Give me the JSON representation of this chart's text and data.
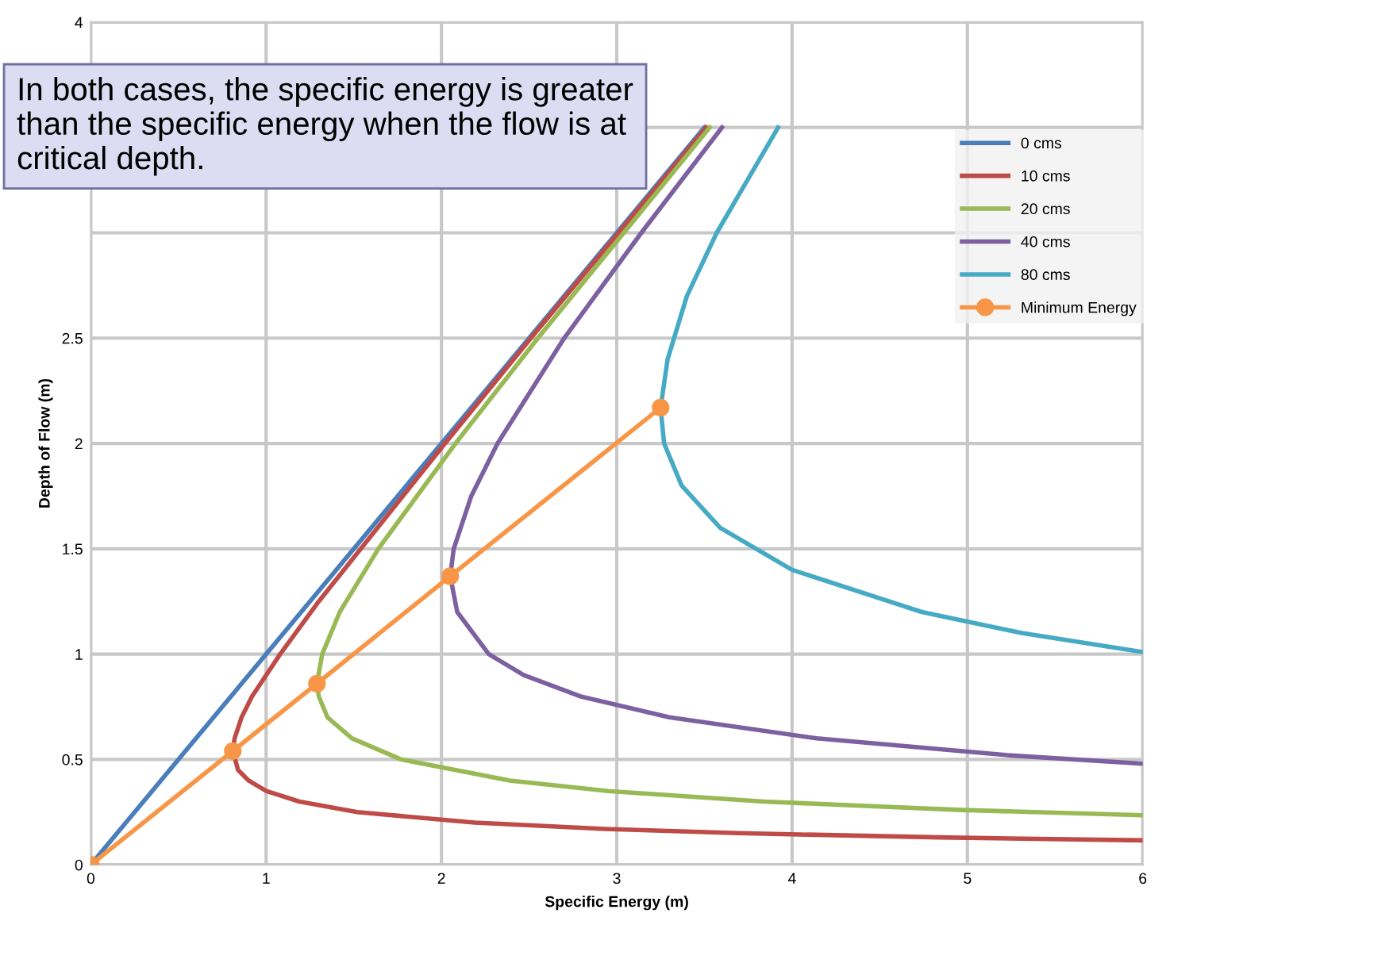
{
  "chart_data": {
    "type": "line",
    "xlabel": "Specific Energy (m)",
    "ylabel": "Depth of Flow (m)",
    "annotations": [
      "In both cases, the specific energy is greater than the specific energy when the flow is at critical depth."
    ],
    "xlim": [
      0,
      6
    ],
    "xticks": [
      0,
      1,
      2,
      3,
      4,
      5,
      6
    ],
    "ylim": [
      0,
      4
    ],
    "yticks": [
      0,
      0.5,
      1,
      1.5,
      2,
      2.5,
      {
        "value": 3,
        "label": null
      },
      {
        "value": 3.5,
        "label": null
      },
      4
    ],
    "grid": true,
    "legend": "right",
    "marker": "none",
    "line_style": "solid",
    "series": [
      {
        "name": "0 cms",
        "color": "#4a7ebb",
        "x": [
          0,
          3.5
        ],
        "values": [
          0,
          3.5
        ]
      },
      {
        "name": "10 cms",
        "color": "#be4b48",
        "x": [
          6.0,
          4.84,
          3.69,
          2.93,
          2.19,
          1.52,
          1.19,
          1.0,
          0.9,
          0.84,
          0.81,
          0.82,
          0.86,
          0.92,
          1.08,
          1.3,
          1.54,
          2.02,
          2.51,
          3.01,
          3.51
        ],
        "values": [
          0.116,
          0.13,
          0.15,
          0.17,
          0.2,
          0.25,
          0.3,
          0.35,
          0.4,
          0.45,
          0.54,
          0.6,
          0.7,
          0.8,
          1.0,
          1.25,
          1.5,
          2.0,
          2.5,
          3.0,
          3.5
        ]
      },
      {
        "name": "20 cms",
        "color": "#98b954",
        "x": [
          6.0,
          4.97,
          3.84,
          2.95,
          2.39,
          1.77,
          1.49,
          1.35,
          1.3,
          1.29,
          1.32,
          1.42,
          1.64,
          2.08,
          2.55,
          3.04,
          3.53
        ],
        "values": [
          0.235,
          0.26,
          0.3,
          0.35,
          0.4,
          0.5,
          0.6,
          0.7,
          0.8,
          0.86,
          1.0,
          1.2,
          1.5,
          2.0,
          2.5,
          3.0,
          3.5
        ]
      },
      {
        "name": "40 cms",
        "color": "#7d60a0",
        "x": [
          6.0,
          5.23,
          4.14,
          3.3,
          2.79,
          2.47,
          2.27,
          2.09,
          2.05,
          2.07,
          2.17,
          2.32,
          2.7,
          3.14,
          3.6
        ],
        "values": [
          0.48,
          0.52,
          0.6,
          0.7,
          0.8,
          0.9,
          1.0,
          1.2,
          1.37,
          1.5,
          1.75,
          2.0,
          2.5,
          3.0,
          3.5
        ]
      },
      {
        "name": "80 cms",
        "color": "#46aac5",
        "x": [
          6.0,
          5.31,
          4.74,
          4.0,
          3.59,
          3.37,
          3.27,
          3.25,
          3.29,
          3.4,
          3.57,
          3.92
        ],
        "values": [
          1.01,
          1.1,
          1.2,
          1.4,
          1.6,
          1.8,
          2.0,
          2.17,
          2.4,
          2.7,
          3.0,
          3.5
        ]
      },
      {
        "name": "Minimum Energy",
        "color": "#f79646",
        "marker": "circle",
        "x": [
          0,
          0.81,
          1.29,
          2.05,
          3.25
        ],
        "values": [
          0,
          0.54,
          0.86,
          1.37,
          2.17
        ]
      }
    ]
  }
}
